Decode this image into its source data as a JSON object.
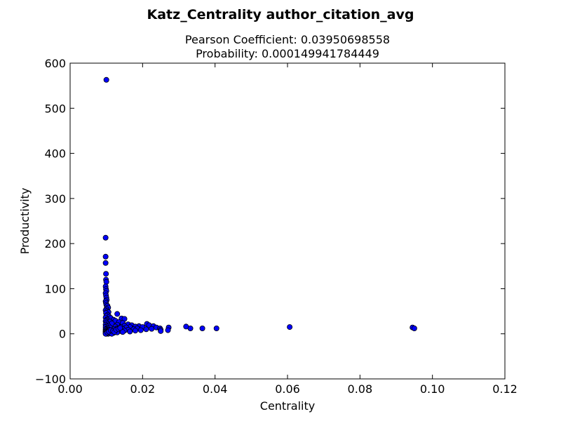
{
  "chart_data": {
    "type": "scatter",
    "title": "Katz_Centrality author_citation_avg",
    "subtitle_lines": [
      "Pearson Coefficient: 0.03950698558",
      "Probability: 0.000149941784449"
    ],
    "xlabel": "Centrality",
    "ylabel": "Productivity",
    "xlim": [
      0.0,
      0.12
    ],
    "ylim": [
      -100,
      600
    ],
    "xticks": [
      0.0,
      0.02,
      0.04,
      0.06,
      0.08,
      0.1,
      0.12
    ],
    "xtick_labels": [
      "0.00",
      "0.02",
      "0.04",
      "0.06",
      "0.08",
      "0.10",
      "0.12"
    ],
    "yticks": [
      -100,
      0,
      100,
      200,
      300,
      400,
      500,
      600
    ],
    "ytick_labels": [
      "−100",
      "0",
      "100",
      "200",
      "300",
      "400",
      "500",
      "600"
    ],
    "grid": false,
    "marker_color": "#0000ff",
    "marker_edge_color": "#000000",
    "points": [
      [
        0.01,
        563
      ],
      [
        0.0098,
        213
      ],
      [
        0.0098,
        171
      ],
      [
        0.0098,
        157
      ],
      [
        0.0099,
        133
      ],
      [
        0.0099,
        120
      ],
      [
        0.01,
        115
      ],
      [
        0.0098,
        105
      ],
      [
        0.0099,
        99
      ],
      [
        0.01,
        95
      ],
      [
        0.0098,
        90
      ],
      [
        0.0099,
        85
      ],
      [
        0.01,
        80
      ],
      [
        0.0101,
        75
      ],
      [
        0.0098,
        72
      ],
      [
        0.0099,
        68
      ],
      [
        0.01,
        64
      ],
      [
        0.0103,
        62
      ],
      [
        0.0105,
        58
      ],
      [
        0.01,
        55
      ],
      [
        0.0098,
        52
      ],
      [
        0.0102,
        50
      ],
      [
        0.0106,
        48
      ],
      [
        0.0099,
        46
      ],
      [
        0.013,
        44
      ],
      [
        0.0104,
        42
      ],
      [
        0.01,
        40
      ],
      [
        0.0108,
        38
      ],
      [
        0.0098,
        36
      ],
      [
        0.0112,
        35
      ],
      [
        0.0142,
        34
      ],
      [
        0.015,
        33
      ],
      [
        0.0102,
        32
      ],
      [
        0.012,
        31
      ],
      [
        0.01,
        30
      ],
      [
        0.0125,
        29
      ],
      [
        0.0098,
        28
      ],
      [
        0.011,
        27
      ],
      [
        0.0135,
        26
      ],
      [
        0.01,
        25
      ],
      [
        0.0145,
        24
      ],
      [
        0.0115,
        23
      ],
      [
        0.0212,
        22
      ],
      [
        0.0102,
        22
      ],
      [
        0.016,
        21
      ],
      [
        0.0098,
        20
      ],
      [
        0.013,
        20
      ],
      [
        0.0218,
        19
      ],
      [
        0.017,
        19
      ],
      [
        0.0105,
        18
      ],
      [
        0.015,
        18
      ],
      [
        0.023,
        17
      ],
      [
        0.019,
        17
      ],
      [
        0.01,
        17
      ],
      [
        0.0125,
        16
      ],
      [
        0.018,
        16
      ],
      [
        0.032,
        16
      ],
      [
        0.0606,
        15
      ],
      [
        0.0098,
        15
      ],
      [
        0.014,
        15
      ],
      [
        0.0165,
        15
      ],
      [
        0.02,
        15
      ],
      [
        0.0945,
        14
      ],
      [
        0.0238,
        14
      ],
      [
        0.011,
        14
      ],
      [
        0.0155,
        14
      ],
      [
        0.0272,
        14
      ],
      [
        0.0102,
        13
      ],
      [
        0.095,
        12
      ],
      [
        0.0332,
        12
      ],
      [
        0.0365,
        12
      ],
      [
        0.0404,
        12
      ],
      [
        0.0248,
        12
      ],
      [
        0.013,
        12
      ],
      [
        0.0185,
        12
      ],
      [
        0.01,
        11
      ],
      [
        0.0225,
        11
      ],
      [
        0.0145,
        11
      ],
      [
        0.0098,
        10
      ],
      [
        0.012,
        10
      ],
      [
        0.0175,
        10
      ],
      [
        0.021,
        10
      ],
      [
        0.025,
        9
      ],
      [
        0.0108,
        9
      ],
      [
        0.016,
        9
      ],
      [
        0.01,
        8
      ],
      [
        0.0135,
        8
      ],
      [
        0.0195,
        8
      ],
      [
        0.027,
        8
      ],
      [
        0.0098,
        7
      ],
      [
        0.0115,
        7
      ],
      [
        0.015,
        7
      ],
      [
        0.018,
        7
      ],
      [
        0.0105,
        6
      ],
      [
        0.014,
        6
      ],
      [
        0.025,
        6
      ],
      [
        0.0098,
        5
      ],
      [
        0.0125,
        5
      ],
      [
        0.0165,
        5
      ],
      [
        0.01,
        4
      ],
      [
        0.011,
        4
      ],
      [
        0.0145,
        4
      ],
      [
        0.0098,
        3
      ],
      [
        0.013,
        3
      ],
      [
        0.0102,
        2
      ],
      [
        0.012,
        2
      ],
      [
        0.0098,
        1
      ],
      [
        0.011,
        1
      ],
      [
        0.0105,
        0
      ],
      [
        0.01,
        0
      ],
      [
        0.0115,
        0
      ],
      [
        0.0098,
        0
      ],
      [
        0.0103,
        3
      ],
      [
        0.0107,
        5
      ],
      [
        0.0112,
        8
      ],
      [
        0.0118,
        6
      ],
      [
        0.0122,
        4
      ],
      [
        0.0127,
        9
      ],
      [
        0.0133,
        11
      ],
      [
        0.0138,
        13
      ]
    ]
  }
}
